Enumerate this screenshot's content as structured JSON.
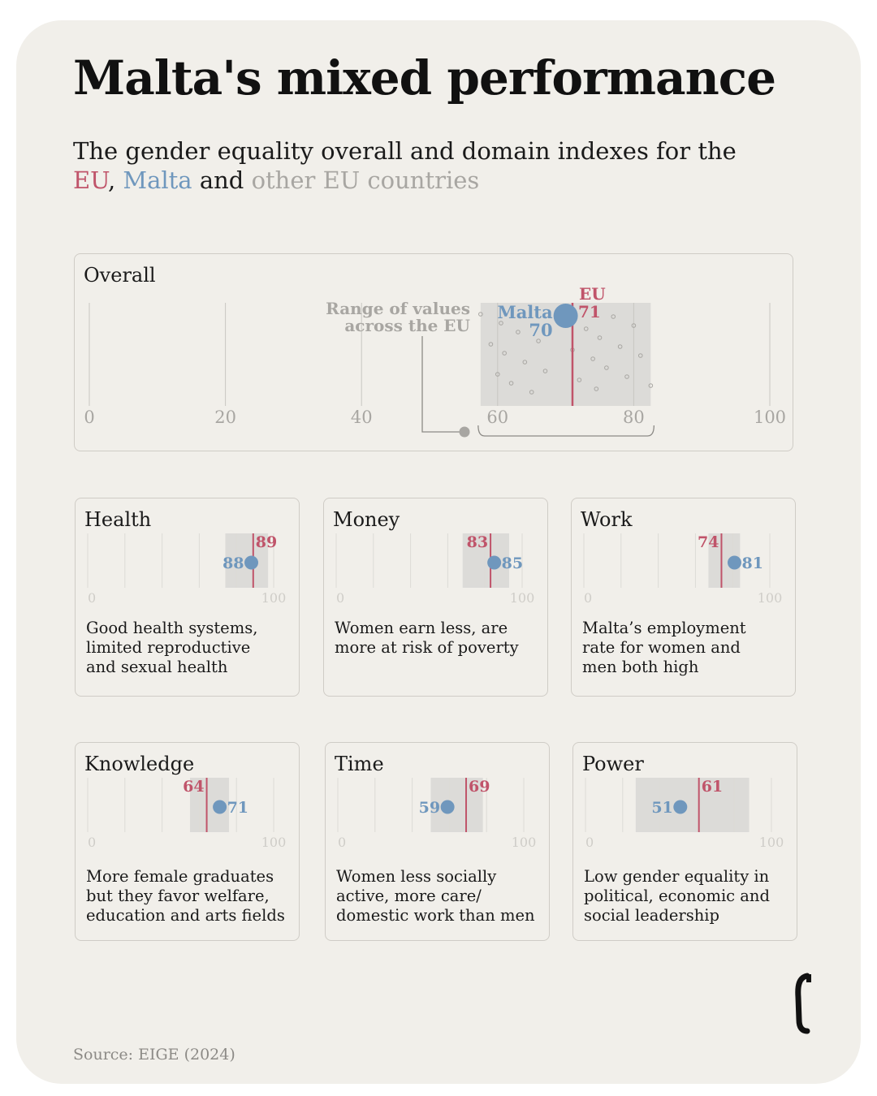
{
  "title": "Malta's mixed performance",
  "subtitle": {
    "text": "The gender equality overall and domain indexes for the",
    "eu": "EU",
    "comma": ",",
    "malta": "Malta",
    "and": "and",
    "others": "other EU countries"
  },
  "source": "Source: EIGE (2024)",
  "colors": {
    "eu": "#c0546a",
    "malta": "#6f97bd",
    "others": "#a8a6a2",
    "range": "#dcdbd8"
  },
  "chart_data": [
    {
      "type": "scatter",
      "title": "Overall",
      "xlim": [
        0,
        100
      ],
      "ticks": [
        0,
        20,
        40,
        60,
        80,
        100
      ],
      "eu_label": "EU",
      "malta_label": "Malta",
      "eu": 71,
      "malta": 70,
      "range": [
        57.5,
        82.5
      ],
      "range_annotation": [
        "Range of values",
        "across the EU"
      ],
      "others": [
        57.5,
        59,
        60,
        60.5,
        61,
        62,
        63,
        64,
        65,
        66,
        67,
        69,
        71,
        72,
        73,
        74,
        74.5,
        75,
        76,
        77,
        78,
        79,
        80,
        81,
        82.5
      ]
    },
    {
      "type": "scatter",
      "title": "Health",
      "xlim": [
        0,
        100
      ],
      "ticks": [
        0,
        100
      ],
      "eu": 89,
      "malta": 88,
      "range": [
        74,
        97
      ],
      "description": [
        "Good health systems,",
        "limited reproductive",
        "and sexual health"
      ]
    },
    {
      "type": "scatter",
      "title": "Money",
      "xlim": [
        0,
        100
      ],
      "ticks": [
        0,
        100
      ],
      "eu": 83,
      "malta": 85,
      "range": [
        68,
        93
      ],
      "description": [
        "Women earn less, are",
        "more at risk of poverty"
      ]
    },
    {
      "type": "scatter",
      "title": "Work",
      "xlim": [
        0,
        100
      ],
      "ticks": [
        0,
        100
      ],
      "eu": 74,
      "malta": 81,
      "range": [
        67,
        84
      ],
      "description": [
        "Malta’s employment",
        "rate for women and",
        "men both high"
      ]
    },
    {
      "type": "scatter",
      "title": "Knowledge",
      "xlim": [
        0,
        100
      ],
      "ticks": [
        0,
        100
      ],
      "eu": 64,
      "malta": 71,
      "range": [
        55,
        76
      ],
      "description": [
        "More female graduates",
        "but they favor welfare,",
        "education and arts fields"
      ]
    },
    {
      "type": "scatter",
      "title": "Time",
      "xlim": [
        0,
        100
      ],
      "ticks": [
        0,
        100
      ],
      "eu": 69,
      "malta": 59,
      "range": [
        50,
        78
      ],
      "description": [
        "Women less socially",
        "active, more care/",
        "domestic work than men"
      ]
    },
    {
      "type": "scatter",
      "title": "Power",
      "xlim": [
        0,
        100
      ],
      "ticks": [
        0,
        100
      ],
      "eu": 61,
      "malta": 51,
      "range": [
        27,
        88
      ],
      "description": [
        "Low gender equality in",
        "political, economic and",
        "social leadership"
      ]
    }
  ]
}
